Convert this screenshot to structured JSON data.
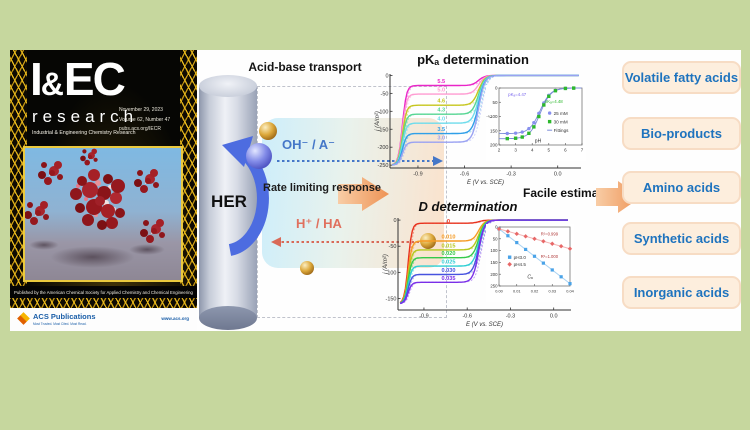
{
  "cover": {
    "masthead_p1": "I",
    "masthead_amp": "&",
    "masthead_p2": "EC",
    "masthead_sub": "research",
    "journal_name": "Industrial & Engineering Chemistry Research",
    "issue_date": "November 29, 2023",
    "issue_volume": "Volume 62, Number 47",
    "issue_url": "pubs.acs.org/IECR",
    "published_by": "Published by the American Chemical Society for Applied Chemistry and Chemical Engineering",
    "publisher": "ACS Publications",
    "publisher_tagline": "Most Trusted. Most Cited. Most Read.",
    "website": "www.acs.org"
  },
  "schematic": {
    "title": "Acid-base transport",
    "electrode": "HER",
    "oh_label": "OH⁻ / A⁻",
    "rate_label": "Rate limiting response",
    "h_label": "H⁺ / HA"
  },
  "flow": {
    "facile_label": "Facile estimation"
  },
  "acids": [
    "Volatile fatty acids",
    "Bio-products",
    "Amino acids",
    "Synthetic acids",
    "Inorganic acids"
  ],
  "chart_data": [
    {
      "type": "line",
      "title": "pKₐ determination",
      "xlabel": "E (V vs. SCE)",
      "ylabel": "j (A/m²)",
      "xlim": [
        -1.08,
        0.15
      ],
      "ylim": [
        -258,
        4
      ],
      "xticks": [
        -0.9,
        -0.6,
        -0.3,
        0.0
      ],
      "yticks": [
        0,
        -50,
        -100,
        -150,
        -200,
        -250
      ],
      "dive": -250,
      "half": -0.51,
      "label_e": -0.75,
      "series": [
        {
          "name": "5.5",
          "color": "#ea25c8",
          "plateau": -28
        },
        {
          "name": "5.0",
          "color": "#ff9cd2",
          "plateau": -52
        },
        {
          "name": "4.6",
          "color": "#c6c61e",
          "plateau": -83
        },
        {
          "name": "4.3",
          "color": "#57d694",
          "plateau": -108
        },
        {
          "name": "4.0",
          "color": "#6fdcec",
          "plateau": -133
        },
        {
          "name": "3.5",
          "color": "#2f9fe8",
          "plateau": -162
        },
        {
          "name": "3.0",
          "color": "#9aa2f2",
          "plateau": -186
        }
      ],
      "inset": {
        "xlabel": "pH",
        "ylabel": "jₗ",
        "xlim": [
          2,
          7
        ],
        "ylim": [
          0,
          200
        ],
        "xticks": [
          2,
          3,
          4,
          5,
          6,
          7
        ],
        "yticks": [
          0,
          50,
          100,
          150,
          200
        ],
        "marker_ph": [
          2.5,
          3,
          3.4,
          3.8,
          4.1,
          4.4,
          4.7,
          5,
          5.4,
          6,
          6.5
        ],
        "series": [
          {
            "name": "25 mM",
            "marker": "circle",
            "color": "#8890ee",
            "pka": 4.47,
            "max": 160
          },
          {
            "name": "30 mM",
            "marker": "square",
            "color": "#2db82d",
            "pka": 4.48,
            "max": 178
          }
        ],
        "fit_label": "Fittings",
        "fit_color": "#7b8cd8",
        "annotations": [
          {
            "text": "pKₐ=4.47",
            "color": "#7b68ee",
            "ph": 2.55,
            "v": 28
          },
          {
            "text": "pKₐ=4.48",
            "color": "#2db82d",
            "ph": 4.75,
            "v": 52
          }
        ]
      }
    },
    {
      "type": "line",
      "title": "D determination",
      "xlabel": "E (V vs. SCE)",
      "ylabel": "j (A/m²)",
      "xlim": [
        -1.08,
        0.12
      ],
      "ylim": [
        -172,
        4
      ],
      "xticks": [
        -0.9,
        -0.6,
        -0.3,
        0.0
      ],
      "yticks": [
        0,
        -50,
        -100,
        -150
      ],
      "dive": -160,
      "half": -0.52,
      "label_e": -0.73,
      "series": [
        {
          "name": "0",
          "color": "#e8331e",
          "plateau": -6
        },
        {
          "name": "0.010",
          "color": "#f59a23",
          "plateau": -40
        },
        {
          "name": "0.015",
          "color": "#b5c81e",
          "plateau": -57
        },
        {
          "name": "0.020",
          "color": "#35c94b",
          "plateau": -72
        },
        {
          "name": "0.025",
          "color": "#2ecfd4",
          "plateau": -88
        },
        {
          "name": "0.030",
          "color": "#4753df",
          "plateau": -104
        },
        {
          "name": "0.035",
          "color": "#7a2fe8",
          "plateau": -119
        }
      ],
      "inset": {
        "xlabel": "Cₐ",
        "ylabel": "|jₗ|",
        "xlim": [
          0,
          0.04
        ],
        "ylim": [
          0,
          250
        ],
        "xtick_labels": [
          "0.00",
          "0.01",
          "0.02",
          "0.03",
          "0.04"
        ],
        "yticks": [
          0,
          50,
          100,
          150,
          200,
          250
        ],
        "marker_c": [
          0,
          0.005,
          0.01,
          0.015,
          0.02,
          0.025,
          0.03,
          0.035,
          0.04
        ],
        "series": [
          {
            "name": "pH3.0",
            "marker": "square",
            "color": "#4aa3e8",
            "line_color": "#a9d2f2",
            "intercept": 8,
            "slope": 5800
          },
          {
            "name": "pH4.5",
            "marker": "diamond",
            "color": "#e86868",
            "line_color": "#f2b6b6",
            "intercept": 8,
            "slope": 2100
          }
        ],
        "r2_labels": [
          {
            "text": "R²=0.999",
            "color": "#b03a3a",
            "c": 0.0235,
            "v": 35
          },
          {
            "text": "R²=1.000",
            "color": "#b03a3a",
            "c": 0.0235,
            "v": 132
          }
        ]
      }
    }
  ]
}
